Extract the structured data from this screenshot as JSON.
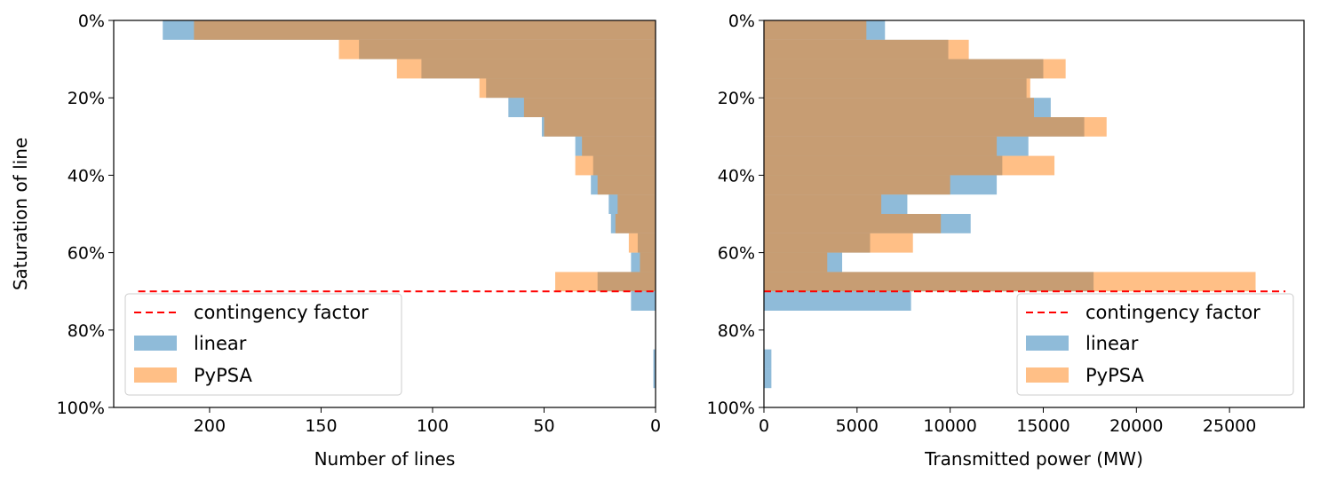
{
  "colors": {
    "linear": "#1f77b4",
    "pypsa": "#ff7f0e",
    "contingency": "#ff0000"
  },
  "chart_data": [
    {
      "type": "bar",
      "orientation": "horizontal",
      "xlabel": "Number of lines",
      "ylabel": "Saturation of line",
      "xlim": [
        243,
        0
      ],
      "ylim": [
        100,
        0
      ],
      "xticks": [
        200,
        150,
        100,
        50,
        0
      ],
      "yticks": [
        0,
        20,
        40,
        60,
        80,
        100
      ],
      "ytick_labels": [
        "0%",
        "20%",
        "40%",
        "60%",
        "80%",
        "100%"
      ],
      "bin_width": 5,
      "bins": [
        0,
        5,
        10,
        15,
        20,
        25,
        30,
        35,
        40,
        45,
        50,
        55,
        60,
        65,
        70,
        75,
        80,
        85,
        90,
        95
      ],
      "series": [
        {
          "name": "linear",
          "values": [
            221,
            133,
            105,
            76,
            66,
            51,
            36,
            28,
            29,
            21,
            20,
            8,
            11,
            26,
            11,
            0,
            0,
            1,
            1,
            0
          ]
        },
        {
          "name": "PyPSA",
          "values": [
            207,
            142,
            116,
            79,
            59,
            50,
            33,
            36,
            26,
            17,
            18,
            12,
            7,
            45,
            0,
            0,
            0,
            0,
            0,
            0
          ]
        }
      ],
      "contingency_factor": 70,
      "legend": {
        "placement": "lower-left",
        "entries": [
          "contingency factor",
          "linear",
          "PyPSA"
        ]
      },
      "grid": false
    },
    {
      "type": "bar",
      "orientation": "horizontal",
      "xlabel": "Transmitted power (MW)",
      "ylabel": "",
      "xlim": [
        0,
        29000
      ],
      "ylim": [
        100,
        0
      ],
      "xticks": [
        0,
        5000,
        10000,
        15000,
        20000,
        25000
      ],
      "yticks": [
        0,
        20,
        40,
        60,
        80,
        100
      ],
      "ytick_labels": [
        "0%",
        "20%",
        "40%",
        "60%",
        "80%",
        "100%"
      ],
      "bin_width": 5,
      "bins": [
        0,
        5,
        10,
        15,
        20,
        25,
        30,
        35,
        40,
        45,
        50,
        55,
        60,
        65,
        70,
        75,
        80,
        85,
        90,
        95
      ],
      "series": [
        {
          "name": "linear",
          "values": [
            6500,
            9900,
            15000,
            14100,
            15400,
            17200,
            14200,
            12800,
            12500,
            7700,
            11100,
            5700,
            4200,
            17700,
            7900,
            0,
            0,
            400,
            400,
            0
          ]
        },
        {
          "name": "PyPSA",
          "values": [
            5500,
            11000,
            16200,
            14300,
            14500,
            18400,
            12500,
            15600,
            10000,
            6300,
            9500,
            8000,
            3400,
            26400,
            0,
            0,
            0,
            0,
            0,
            0
          ]
        }
      ],
      "contingency_factor": 70,
      "legend": {
        "placement": "lower-right",
        "entries": [
          "contingency factor",
          "linear",
          "PyPSA"
        ]
      },
      "grid": false
    }
  ]
}
